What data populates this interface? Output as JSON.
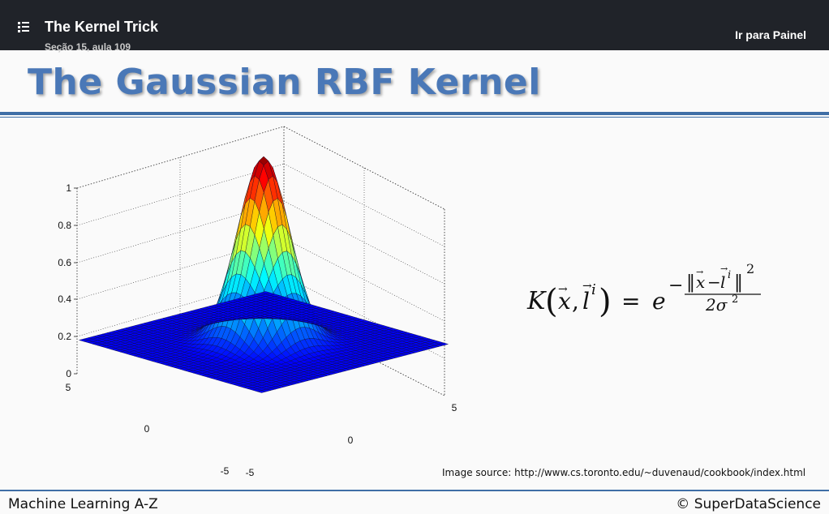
{
  "header": {
    "course_title": "The Kernel Trick",
    "lesson": "Seção 15, aula 109",
    "dashboard_link": "Ir para Painel"
  },
  "slide": {
    "title": "The Gaussian RBF Kernel",
    "formula": {
      "lhs_func": "K",
      "arg_x": "x",
      "arg_l": "l",
      "sup_i": "i",
      "eq": "=",
      "base": "e",
      "minus": "−",
      "num_x": "x",
      "num_l": "l",
      "num_minus": "−",
      "num_sup": "i",
      "num_exp": "2",
      "den": "2σ",
      "den_exp": "2"
    },
    "image_source": "Image source: http://www.cs.toronto.edu/~duvenaud/cookbook/index.html"
  },
  "plot": {
    "z_ticks": [
      "0",
      "0.2",
      "0.4",
      "0.6",
      "0.8",
      "1"
    ],
    "left_axis_ticks": [
      "5",
      "0",
      "-5"
    ],
    "right_axis_ticks": [
      "-5",
      "0",
      "5"
    ]
  },
  "footer": {
    "left": "Machine Learning A-Z",
    "right": "© SuperDataScience"
  },
  "colors": {
    "title_blue": "#4a78b7",
    "rule_blue": "#3f6ea6",
    "header_bg": "#202329"
  }
}
